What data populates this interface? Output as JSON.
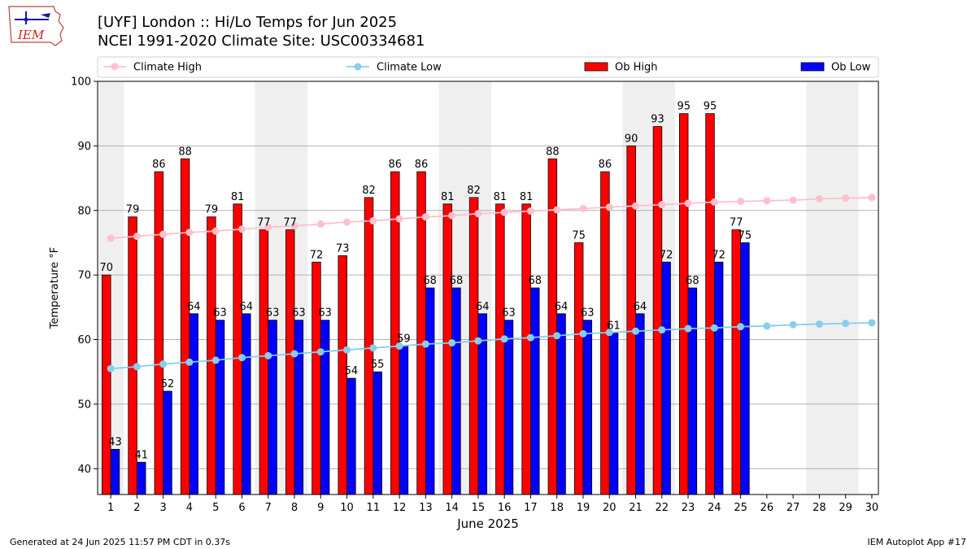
{
  "logo_text": "IEM",
  "footer": {
    "generated": "Generated at 24 Jun 2025 11:57 PM CDT in 0.37s",
    "app": "IEM Autoplot App #17"
  },
  "colors": {
    "ob_high": "#ff0000",
    "ob_low": "#0000ff",
    "climate_high": "#ffc0cb",
    "climate_low": "#87ceeb",
    "weekend_band": "#efefef"
  },
  "chart_data": {
    "type": "bar",
    "title": "[UYF] London :: Hi/Lo Temps for Jun 2025",
    "subtitle": "NCEI 1991-2020 Climate Site: USC00334681",
    "xlabel": "June 2025",
    "ylabel": "Temperature °F",
    "ylim": [
      36,
      100
    ],
    "yticks": [
      40,
      50,
      60,
      70,
      80,
      90,
      100
    ],
    "grid": true,
    "legend_placement": "top",
    "categories": [
      "1",
      "2",
      "3",
      "4",
      "5",
      "6",
      "7",
      "8",
      "9",
      "10",
      "11",
      "12",
      "13",
      "14",
      "15",
      "16",
      "17",
      "18",
      "19",
      "20",
      "21",
      "22",
      "23",
      "24",
      "25",
      "26",
      "27",
      "28",
      "29",
      "30"
    ],
    "weekend_days": [
      1,
      7,
      8,
      14,
      15,
      21,
      22,
      28,
      29
    ],
    "series": [
      {
        "name": "Ob High",
        "kind": "bar",
        "values": [
          70,
          79,
          86,
          88,
          79,
          81,
          77,
          77,
          72,
          73,
          82,
          86,
          86,
          81,
          82,
          81,
          81,
          88,
          75,
          86,
          90,
          93,
          95,
          95,
          77,
          null,
          null,
          null,
          null,
          null
        ]
      },
      {
        "name": "Ob Low",
        "kind": "bar",
        "values": [
          43,
          41,
          52,
          64,
          63,
          64,
          63,
          63,
          63,
          54,
          55,
          59,
          68,
          68,
          64,
          63,
          68,
          64,
          63,
          61,
          64,
          72,
          68,
          72,
          75,
          null,
          null,
          null,
          null,
          null
        ]
      },
      {
        "name": "Climate High",
        "kind": "line",
        "values": [
          75.7,
          76.0,
          76.3,
          76.6,
          76.8,
          77.1,
          77.4,
          77.6,
          77.9,
          78.2,
          78.4,
          78.7,
          79.0,
          79.2,
          79.5,
          79.7,
          79.9,
          80.1,
          80.3,
          80.5,
          80.7,
          80.9,
          81.1,
          81.3,
          81.4,
          81.5,
          81.6,
          81.8,
          81.9,
          82.0
        ]
      },
      {
        "name": "Climate Low",
        "kind": "line",
        "values": [
          55.5,
          55.8,
          56.2,
          56.5,
          56.8,
          57.2,
          57.5,
          57.8,
          58.1,
          58.4,
          58.7,
          59.0,
          59.3,
          59.5,
          59.8,
          60.1,
          60.3,
          60.6,
          60.9,
          61.1,
          61.3,
          61.5,
          61.7,
          61.8,
          62.0,
          62.1,
          62.3,
          62.4,
          62.5,
          62.6
        ]
      }
    ]
  }
}
